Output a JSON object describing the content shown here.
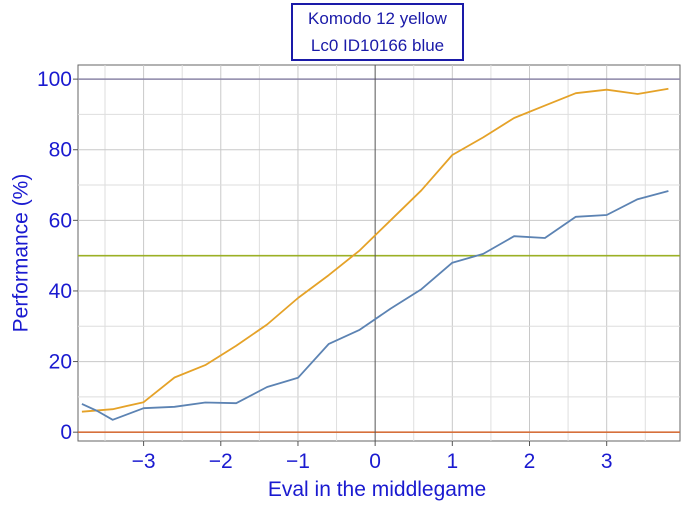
{
  "chart_data": {
    "type": "line",
    "title": "",
    "xlabel": "Eval in the middlegame",
    "ylabel": "Performance (%)",
    "xlim": [
      -3.85,
      3.95
    ],
    "ylim": [
      -2.5,
      104
    ],
    "x_ticks": [
      -3,
      -2,
      -1,
      0,
      1,
      2,
      3
    ],
    "x_tick_labels": [
      "−3",
      "−2",
      "−1",
      "0",
      "1",
      "2",
      "3"
    ],
    "y_ticks": [
      0,
      20,
      40,
      60,
      80,
      100
    ],
    "y_tick_labels": [
      "0",
      "20",
      "40",
      "60",
      "80",
      "100"
    ],
    "grid": true,
    "legend": {
      "placement": "top-center",
      "entries": [
        "Komodo 12 yellow",
        "Lc0 ID10166 blue"
      ]
    },
    "series": [
      {
        "name": "Komodo 12 yellow",
        "color": "#e5a228",
        "x": [
          -3.8,
          -3.4,
          -3.0,
          -2.6,
          -2.2,
          -1.8,
          -1.4,
          -1.0,
          -0.6,
          -0.2,
          0.2,
          0.6,
          1.0,
          1.4,
          1.8,
          2.2,
          2.6,
          3.0,
          3.4,
          3.8
        ],
        "y": [
          5.8,
          6.5,
          8.5,
          15.5,
          19,
          24.5,
          30.5,
          38,
          44.5,
          51.5,
          60,
          68.5,
          78.5,
          83.5,
          89,
          92.5,
          96,
          97,
          95.8,
          97.3
        ]
      },
      {
        "name": "Lc0 ID10166 blue",
        "color": "#5c83b3",
        "x": [
          -3.8,
          -3.6,
          -3.4,
          -3.0,
          -2.6,
          -2.2,
          -1.8,
          -1.4,
          -1.0,
          -0.6,
          -0.2,
          0.2,
          0.6,
          1.0,
          1.4,
          1.8,
          2.2,
          2.6,
          3.0,
          3.4,
          3.8
        ],
        "y": [
          8,
          6,
          3.5,
          6.8,
          7.2,
          8.4,
          8.2,
          12.8,
          15.4,
          25,
          29,
          35,
          40.5,
          48,
          50.5,
          55.5,
          55,
          61,
          61.5,
          66,
          68.3
        ]
      }
    ],
    "reference_lines": [
      {
        "y": 100,
        "color": "#8c86a8"
      },
      {
        "y": 50,
        "color": "#9bb025"
      },
      {
        "y": 0,
        "color": "#d6703c"
      }
    ]
  }
}
